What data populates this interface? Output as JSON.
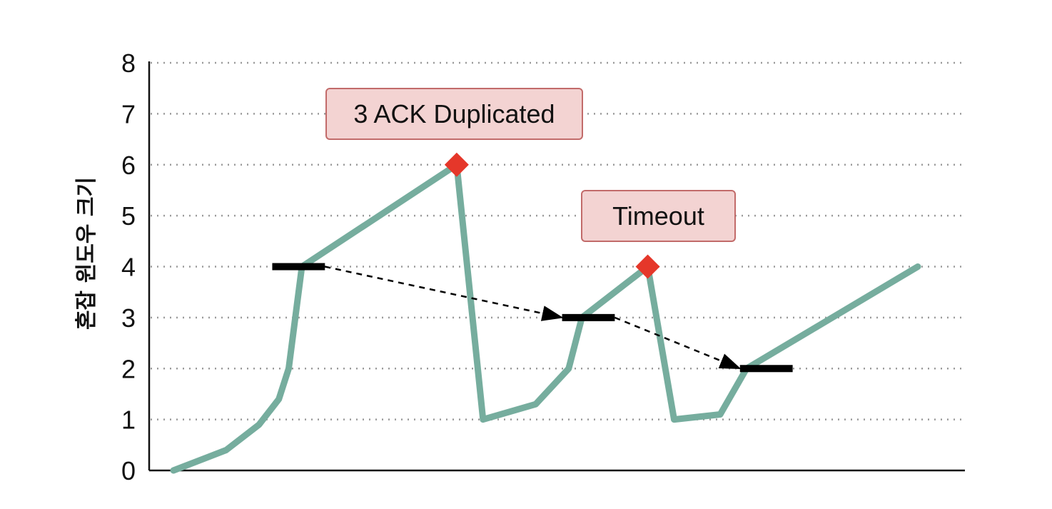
{
  "chart_data": {
    "type": "line",
    "title": "",
    "xlabel": "",
    "ylabel": "혼잡 윈도우 크기",
    "ylim": [
      0,
      8
    ],
    "yticks": [
      0,
      1,
      2,
      3,
      4,
      5,
      6,
      7,
      8
    ],
    "grid": "horizontal dotted",
    "series": [
      {
        "values": [
          [
            0.0,
            0.0
          ],
          [
            0.8,
            0.4
          ],
          [
            1.3,
            0.9
          ],
          [
            1.6,
            1.4
          ],
          [
            1.75,
            2.0
          ],
          [
            1.95,
            4.0
          ],
          [
            4.3,
            6.0
          ],
          [
            4.7,
            1.0
          ],
          [
            5.5,
            1.3
          ],
          [
            6.0,
            2.0
          ],
          [
            6.2,
            3.0
          ],
          [
            7.2,
            4.0
          ],
          [
            7.6,
            1.0
          ],
          [
            8.3,
            1.1
          ],
          [
            8.7,
            2.0
          ],
          [
            11.3,
            4.0
          ]
        ]
      }
    ],
    "thresholds": [
      {
        "y": 4,
        "x_start": 1.5,
        "x_end": 2.3
      },
      {
        "y": 3,
        "x_start": 5.9,
        "x_end": 6.7
      },
      {
        "y": 2,
        "x_start": 8.6,
        "x_end": 9.4
      }
    ],
    "threshold_arrows": [
      {
        "from": [
          2.3,
          4
        ],
        "to": [
          5.9,
          3
        ]
      },
      {
        "from": [
          6.7,
          3
        ],
        "to": [
          8.6,
          2
        ]
      }
    ],
    "markers": [
      {
        "x": 4.3,
        "y": 6,
        "label": "3 ACK Duplicated"
      },
      {
        "x": 7.2,
        "y": 4,
        "label": "Timeout"
      }
    ],
    "colors": {
      "line": "#76ad9e",
      "marker": "#e5372a",
      "threshold": "#000000",
      "callout_fill": "#f3d3d2",
      "callout_border": "#c26b6a",
      "grid": "#9a9a9a",
      "axis": "#111111"
    }
  }
}
